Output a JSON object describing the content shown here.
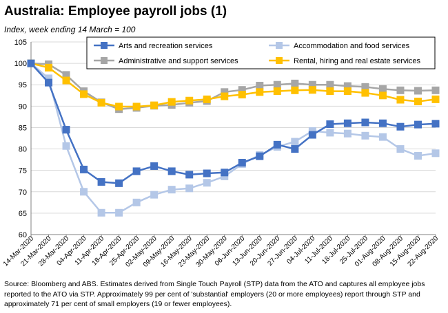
{
  "title": "Australia:  Employee payroll jobs (1)",
  "subtitle": "Index, week ending 14 March = 100",
  "source": "Source: Bloomberg and ABS.  Estimates derived from Single Touch Payroll (STP) data from the ATO and captures all employee jobs reported to the ATO via STP.  Approximately 99 per cent of 'substantial' employers (20 or more employees) report through STP and approximately 71 per cent of small employers (19 or fewer employees).",
  "chart_data": {
    "type": "line",
    "x": [
      "14-Mar-2020",
      "21-Mar-2020",
      "28-Mar-2020",
      "04-Apr-2020",
      "11-Apr-2020",
      "18-Apr-2020",
      "25-Apr-2020",
      "02-May-2020",
      "09-May-2020",
      "16-May-2020",
      "23-May-2020",
      "30-May-2020",
      "06-Jun-2020",
      "13-Jun-2020",
      "20-Jun-2020",
      "27-Jun-2020",
      "04-Jul-2020",
      "11-Jul-2020",
      "18-Jul-2020",
      "25-Jul-2020",
      "01-Aug-2020",
      "08-Aug-2020",
      "15-Aug-2020",
      "22-Aug-2020"
    ],
    "ylim": [
      60,
      105
    ],
    "yticks": [
      60,
      65,
      70,
      75,
      80,
      85,
      90,
      95,
      100,
      105
    ],
    "grid": true,
    "legend_position": "top",
    "series": [
      {
        "name": "Arts and recreation services",
        "color": "#4472c4",
        "values": [
          100,
          95.5,
          84.5,
          75.2,
          72.3,
          72.0,
          74.8,
          76.0,
          74.8,
          74.0,
          74.3,
          74.5,
          76.8,
          78.3,
          81.0,
          80.0,
          83.3,
          85.8,
          86.0,
          86.2,
          86.0,
          85.2,
          85.7,
          85.9
        ]
      },
      {
        "name": "Accommodation and food services",
        "color": "#b4c7e7",
        "values": [
          100,
          96.5,
          80.7,
          70.0,
          65.1,
          65.1,
          67.5,
          69.3,
          70.5,
          70.8,
          72.1,
          73.6,
          76.5,
          78.6,
          80.5,
          81.7,
          84.2,
          83.8,
          83.6,
          83.1,
          82.8,
          80.0,
          78.4,
          79.0
        ]
      },
      {
        "name": "Administrative and support services",
        "color": "#a6a6a6",
        "values": [
          100,
          99.8,
          97.3,
          93.5,
          90.9,
          89.3,
          89.6,
          90.1,
          90.3,
          90.8,
          91.2,
          93.3,
          93.8,
          94.8,
          95.0,
          95.3,
          95.0,
          95.0,
          94.7,
          94.5,
          94.0,
          93.7,
          93.6,
          93.7
        ]
      },
      {
        "name": "Rental, hiring and real estate services",
        "color": "#ffc000",
        "values": [
          100,
          99.0,
          96.0,
          92.8,
          90.8,
          89.9,
          89.9,
          90.2,
          91.0,
          91.3,
          91.6,
          92.3,
          92.7,
          93.3,
          93.5,
          93.7,
          93.8,
          93.5,
          93.5,
          93.1,
          92.5,
          91.5,
          91.1,
          91.6
        ]
      }
    ]
  }
}
